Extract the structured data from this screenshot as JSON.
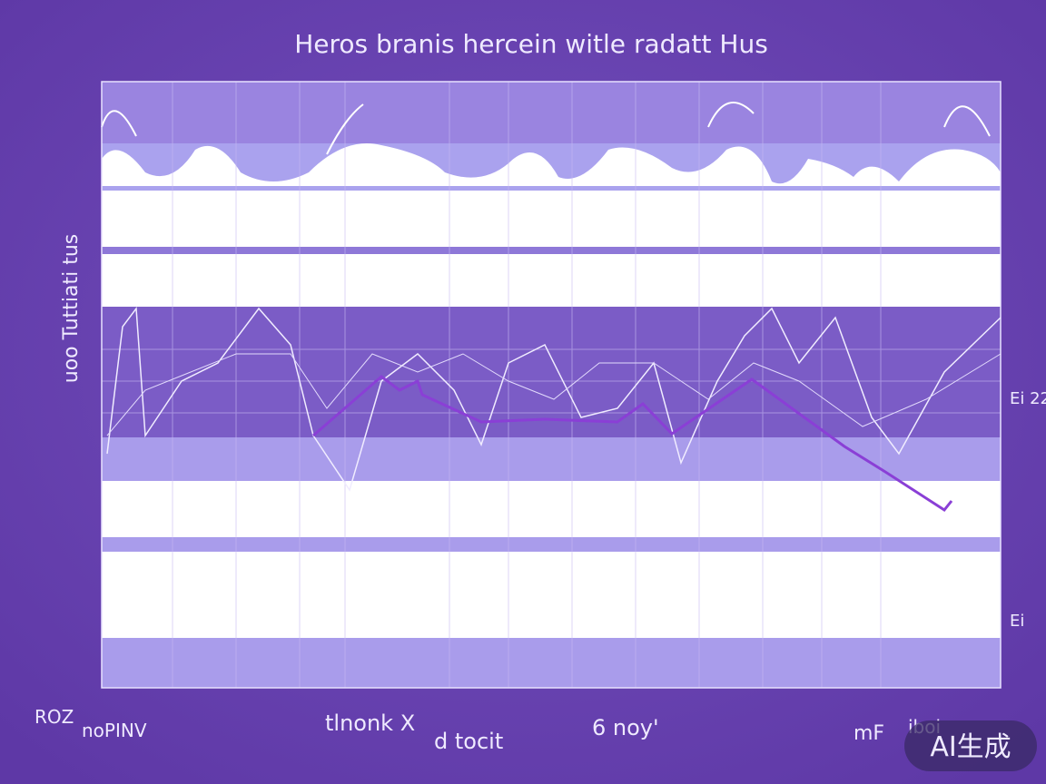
{
  "header": {
    "title": "Heros branis hercein witle radatt Hus"
  },
  "axis": {
    "y_label": "uoo Tuttiati tus",
    "right_labels": [
      "Ei 22",
      "Ei"
    ]
  },
  "x_labels": [
    "ROZ",
    "noPINV",
    "tlnonk X",
    "d tocit",
    "6 noy'",
    "mF",
    "iboi"
  ],
  "watermark": "AI生成"
}
